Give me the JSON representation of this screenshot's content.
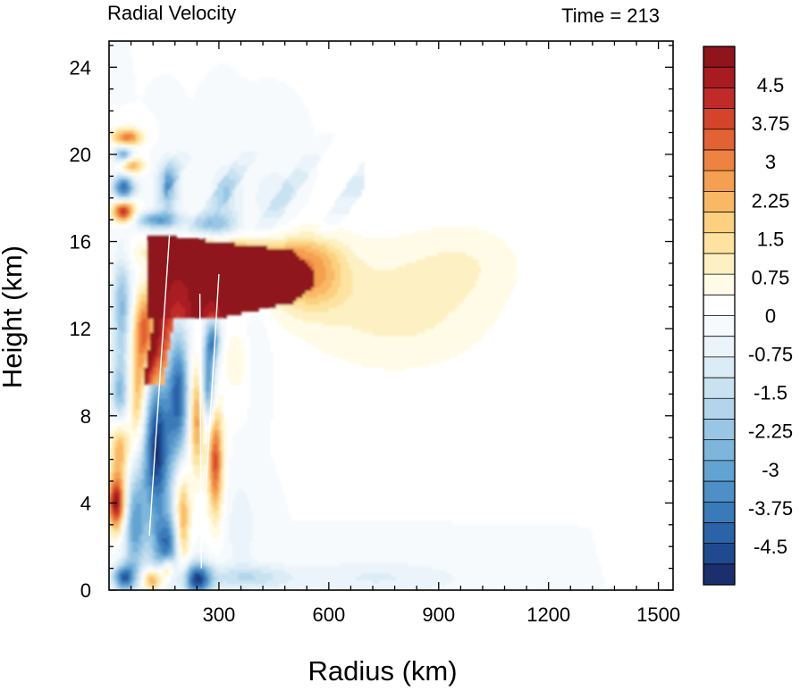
{
  "chart_data": {
    "type": "heatmap",
    "title": "Radial Velocity",
    "time_label": "Time = 213",
    "xlabel": "Radius (km)",
    "ylabel": "Height (km)",
    "xlim": [
      0,
      1540
    ],
    "ylim": [
      0,
      25.2
    ],
    "x_ticks": [
      300,
      600,
      900,
      1200,
      1500
    ],
    "x_tick_labels": [
      "300",
      "600",
      "900",
      "1200",
      "1500"
    ],
    "y_ticks": [
      0,
      4,
      8,
      12,
      16,
      20,
      24
    ],
    "y_tick_labels": [
      "0",
      "4",
      "8",
      "12",
      "16",
      "20",
      "24"
    ],
    "colorbar": {
      "levels": [
        -5.25,
        -5.0,
        -4.75,
        -4.5,
        -4.25,
        -4.0,
        -3.75,
        -3.5,
        -3.25,
        -3.0,
        -2.75,
        -2.5,
        -2.25,
        -2.0,
        -1.75,
        -1.5,
        -1.25,
        -1.0,
        -0.75,
        -0.5,
        -0.25,
        0,
        0.25,
        0.5,
        0.75,
        1.0,
        1.25,
        1.5,
        1.75,
        2.0,
        2.25,
        2.5,
        2.75,
        3.0,
        3.25,
        3.5,
        3.75,
        4.0,
        4.25,
        4.5,
        4.75,
        5.0,
        5.25
      ],
      "tick_values": [
        4.5,
        3.75,
        3,
        2.25,
        1.5,
        0.75,
        0,
        -0.75,
        -1.5,
        -2.25,
        -3,
        -3.75,
        -4.5
      ],
      "tick_labels": [
        "4.5",
        "3.75",
        "3",
        "2.25",
        "1.5",
        "0.75",
        "0",
        "-0.75",
        "-1.5",
        "-2.25",
        "-3",
        "-3.75",
        "-4.5"
      ],
      "colors": [
        "#1a2f6b",
        "#1f4a8f",
        "#2a63a8",
        "#3a7ab8",
        "#4d8fc6",
        "#63a3d2",
        "#7db5dc",
        "#98c6e4",
        "#b2d5eb",
        "#c9e2f1",
        "#dcecf6",
        "#ebf4fa",
        "#f6fafd",
        "#ffffff",
        "#fffbe6",
        "#fdf0c2",
        "#fde39f",
        "#fbd07f",
        "#f9b866",
        "#f59f50",
        "#ee8240",
        "#e36234",
        "#d3442b",
        "#c02b27",
        "#a81c21",
        "#8f141b"
      ]
    },
    "features": [
      {
        "r": 780,
        "z": 13.0,
        "v": 1.0,
        "rs": 280,
        "zs": 3.0
      },
      {
        "r": 980,
        "z": 15.2,
        "v": 0.5,
        "rs": 160,
        "zs": 1.8
      },
      {
        "r": 1000,
        "z": 20.5,
        "v": 0.25,
        "rs": 120,
        "zs": 0.4
      },
      {
        "r": 1480,
        "z": 1.0,
        "v": 0.25,
        "rs": 60,
        "zs": 0.8
      },
      {
        "r": 540,
        "z": 14.6,
        "v": 2.5,
        "rs": 100,
        "zs": 1.6
      },
      {
        "r": 300,
        "z": 15.5,
        "v": 3.0,
        "rs": 180,
        "zs": 0.6
      },
      {
        "r": 40,
        "z": 17.4,
        "v": 4.5,
        "rs": 30,
        "zs": 0.5
      },
      {
        "r": 50,
        "z": 20.8,
        "v": 3.2,
        "rs": 40,
        "zs": 0.4
      },
      {
        "r": 60,
        "z": 19.5,
        "v": 2.8,
        "rs": 30,
        "zs": 0.4
      },
      {
        "r": 40,
        "z": 18.5,
        "v": -4.0,
        "rs": 30,
        "zs": 0.6
      },
      {
        "r": 40,
        "z": 20.0,
        "v": -3.0,
        "rs": 25,
        "zs": 0.4
      },
      {
        "r": 130,
        "z": 17.0,
        "v": -3.0,
        "rs": 60,
        "zs": 0.4
      },
      {
        "r": 280,
        "z": 16.8,
        "v": -2.0,
        "rs": 60,
        "zs": 0.5
      },
      {
        "r": 160,
        "z": 18.5,
        "v": -2.5,
        "rs": 30,
        "zs": 1.2
      },
      {
        "r": 20,
        "z": 4.0,
        "v": 5.0,
        "rs": 25,
        "zs": 1.2
      },
      {
        "r": 30,
        "z": 6.5,
        "v": 2.5,
        "rs": 25,
        "zs": 1.5
      },
      {
        "r": 30,
        "z": 9.0,
        "v": -2.5,
        "rs": 25,
        "zs": 1.5
      },
      {
        "r": 35,
        "z": 13.0,
        "v": -2.5,
        "rs": 25,
        "zs": 2.5
      },
      {
        "r": 80,
        "z": 9.0,
        "v": 2.5,
        "rs": 25,
        "zs": 2.5
      },
      {
        "r": 100,
        "z": 12.0,
        "v": 3.5,
        "rs": 30,
        "zs": 1.8
      },
      {
        "r": 70,
        "z": 3.0,
        "v": -3.0,
        "rs": 30,
        "zs": 2.5
      },
      {
        "r": 130,
        "z": 6.5,
        "v": -5.0,
        "rs": 40,
        "zs": 3.5
      },
      {
        "r": 190,
        "z": 9.0,
        "v": -4.0,
        "rs": 30,
        "zs": 3.0
      },
      {
        "r": 160,
        "z": 2.0,
        "v": -3.5,
        "rs": 40,
        "zs": 1.5
      },
      {
        "r": 200,
        "z": 3.0,
        "v": 3.0,
        "rs": 20,
        "zs": 2.5
      },
      {
        "r": 240,
        "z": 8.0,
        "v": 3.0,
        "rs": 20,
        "zs": 2.5
      },
      {
        "r": 290,
        "z": 6.0,
        "v": 3.8,
        "rs": 20,
        "zs": 2.5
      },
      {
        "r": 270,
        "z": 9.5,
        "v": -3.5,
        "rs": 20,
        "zs": 2.0
      },
      {
        "r": 285,
        "z": 11.5,
        "v": -3.0,
        "rs": 20,
        "zs": 1.0
      },
      {
        "r": 240,
        "z": 0.5,
        "v": -4.5,
        "rs": 40,
        "zs": 0.8
      },
      {
        "r": 120,
        "z": 0.5,
        "v": 3.0,
        "rs": 30,
        "zs": 0.5
      },
      {
        "r": 40,
        "z": 0.6,
        "v": -4.0,
        "rs": 30,
        "zs": 0.6
      },
      {
        "r": 160,
        "z": 1.0,
        "v": 3.0,
        "rs": 20,
        "zs": 0.5
      },
      {
        "r": 380,
        "z": 0.6,
        "v": -1.5,
        "rs": 120,
        "zs": 0.6
      },
      {
        "r": 700,
        "z": 0.6,
        "v": -0.75,
        "rs": 200,
        "zs": 0.8
      },
      {
        "r": 900,
        "z": 0.5,
        "v": -0.25,
        "rs": 200,
        "zs": 0.8
      },
      {
        "r": 400,
        "z": 11.0,
        "v": -0.5,
        "rs": 40,
        "zs": 2.0
      },
      {
        "r": 360,
        "z": 3.0,
        "v": -0.75,
        "rs": 40,
        "zs": 2.0
      },
      {
        "r": 320,
        "z": 18.0,
        "v": -1.25,
        "rs": 40,
        "zs": 1.5
      },
      {
        "r": 450,
        "z": 18.0,
        "v": -0.75,
        "rs": 60,
        "zs": 1.5
      },
      {
        "r": 350,
        "z": 10.5,
        "v": 0.75,
        "rs": 40,
        "zs": 1.5
      }
    ]
  }
}
